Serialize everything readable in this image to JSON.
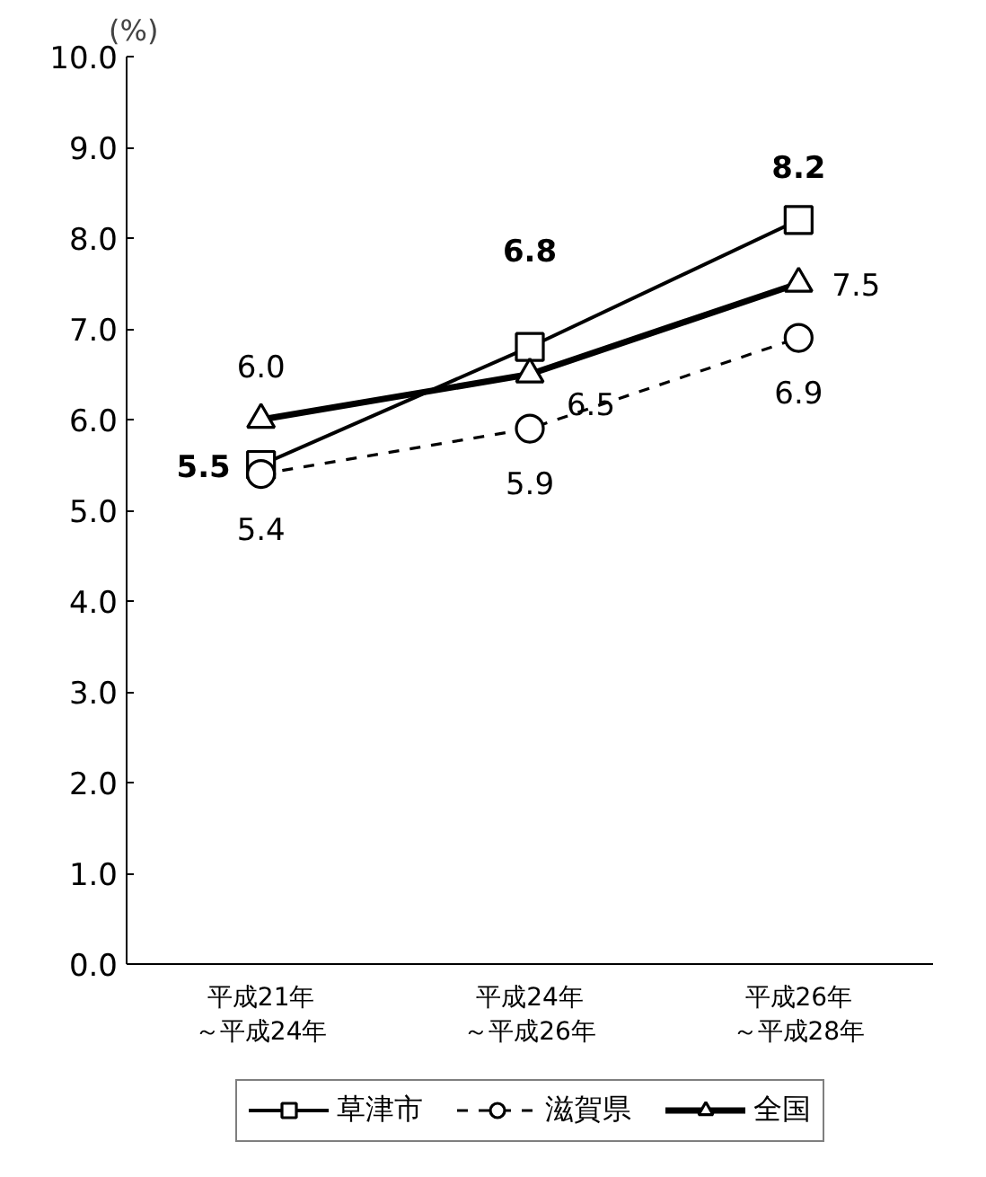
{
  "chart_data": {
    "type": "line",
    "ylabel": "(%)",
    "categories": [
      "平成21年～平成24年",
      "平成24年～平成26年",
      "平成26年～平成28年"
    ],
    "series": [
      {
        "name": "草津市",
        "color": "#000000",
        "values": [
          5.5,
          6.8,
          8.2
        ],
        "value_labels": [
          "5.5",
          "6.8",
          "8.2"
        ],
        "marker": "square",
        "line_style": "solid"
      },
      {
        "name": "滋賀県",
        "color": "#000000",
        "values": [
          5.4,
          5.9,
          6.9
        ],
        "value_labels": [
          "5.4",
          "5.9",
          "6.9"
        ],
        "marker": "circle",
        "line_style": "dashed"
      },
      {
        "name": "全国",
        "color": "#000000",
        "values": [
          6.0,
          6.5,
          7.5
        ],
        "value_labels": [
          "6.0",
          "6.5",
          "7.5"
        ],
        "marker": "triangle",
        "line_style": "solid"
      }
    ],
    "ylim": [
      0,
      10
    ],
    "yticks": [
      {
        "value": 0,
        "label": "0.0"
      },
      {
        "value": 1,
        "label": "1.0"
      },
      {
        "value": 2,
        "label": "2.0"
      },
      {
        "value": 3,
        "label": "3.0"
      },
      {
        "value": 4,
        "label": "4.0"
      },
      {
        "value": 5,
        "label": "5.0"
      },
      {
        "value": 6,
        "label": "6.0"
      },
      {
        "value": 7,
        "label": "7.0"
      },
      {
        "value": 8,
        "label": "8.0"
      },
      {
        "value": 9,
        "label": "9.0"
      },
      {
        "value": 10,
        "label": "10.0"
      }
    ],
    "grid": false,
    "legend": "bottom"
  }
}
